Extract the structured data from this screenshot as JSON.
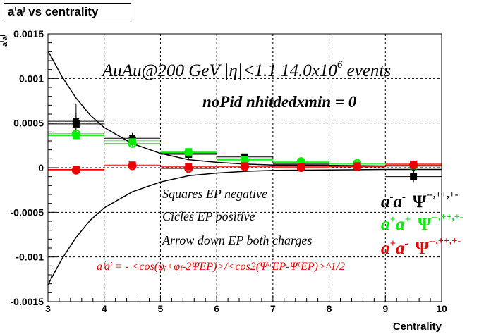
{
  "title": {
    "base": "a",
    "sup1": "i",
    "mid": "a",
    "sup2": "j",
    "rest": " vs centrality"
  },
  "ylabel": {
    "base": "a",
    "sup1": "i",
    "mid": "a",
    "sup2": "j"
  },
  "xlabel": "Centrality",
  "annotations": {
    "run": "AuAu@200 GeV |η|<1.1 14.0x10",
    "run_exp": "6",
    "run_tail": " events",
    "cuts": "noPid nhitdedxmin = 0",
    "legend_squares": "Squares EP negative",
    "legend_circles": "Cicles EP positive",
    "legend_arrows": "Arrow down EP both charges",
    "formula": "aⁱaʲ = - <cos(φᵢ+φⱼ-2ΨEP)>/<cos2(ΨᵃEP-ΨᵇEP)>^1/2"
  },
  "labels": {
    "mm": {
      "a": "a",
      "s1": "-",
      "a2": "a",
      "s2": "-",
      "psi": "Ψ",
      "psi_sup": "--,++,+-"
    },
    "pp": {
      "a": "a",
      "s1": "+",
      "a2": "a",
      "s2": "+",
      "psi": "Ψ",
      "psi_sup": "--,++,+-"
    },
    "pm": {
      "a": "a",
      "s1": "+",
      "a2": "a",
      "s2": "-",
      "psi": "Ψ",
      "psi_sup": "--,++,+-"
    }
  },
  "colors": {
    "mm": "#000000",
    "pp": "#00ee00",
    "pm": "#ee0000",
    "frame": "#000000"
  },
  "chart_data": {
    "type": "scatter",
    "xlim": [
      3,
      10
    ],
    "ylim": [
      -0.0015,
      0.0015
    ],
    "xticks": [
      3,
      4,
      5,
      6,
      7,
      8,
      9,
      10
    ],
    "yticks": [
      -0.0015,
      -0.001,
      -0.0005,
      0,
      0.0005,
      0.001,
      0.0015
    ],
    "ytick_labels": [
      "-0.0015",
      "-0.001",
      "-0.0005",
      "0",
      "0.0005",
      "0.001",
      "0.0015"
    ],
    "grid": true,
    "x": [
      3.5,
      4.5,
      5.5,
      6.5,
      7.5,
      8.5,
      9.5
    ],
    "series": [
      {
        "key": "mm",
        "marker": "square",
        "values": [
          0.00049,
          0.00031,
          0.00015,
          0.00012,
          3e-05,
          1e-05,
          -0.0001
        ],
        "errors": [
          0.00012,
          6e-05,
          5e-05,
          4e-05,
          3e-05,
          4e-05,
          6e-05
        ]
      },
      {
        "key": "mm",
        "marker": "arrow",
        "values": [
          0.00052,
          0.00033,
          0.00016,
          0.0001,
          4e-05,
          2e-05,
          -2e-05
        ],
        "errors": [
          0.0002,
          6e-05,
          5e-05,
          4e-05,
          3e-05,
          3e-05,
          4e-05
        ]
      },
      {
        "key": "pp",
        "marker": "square",
        "values": [
          0.00036,
          0.00029,
          0.00018,
          9e-05,
          6e-05,
          4e-05,
          2e-05
        ],
        "errors": [
          4e-05,
          3e-05,
          3e-05,
          3e-05,
          3e-05,
          3e-05,
          3e-05
        ]
      },
      {
        "key": "pp",
        "marker": "circle",
        "values": [
          0.00038,
          0.00027,
          0.00017,
          8e-05,
          7e-05,
          5e-05,
          3e-05
        ],
        "errors": [
          4e-05,
          3e-05,
          3e-05,
          3e-05,
          3e-05,
          3e-05,
          3e-05
        ]
      },
      {
        "key": "pm",
        "marker": "square",
        "values": [
          -2e-05,
          3e-05,
          1e-05,
          2e-05,
          1e-05,
          2e-05,
          4e-05
        ],
        "errors": [
          2e-05,
          2e-05,
          2e-05,
          2e-05,
          2e-05,
          2e-05,
          3e-05
        ]
      },
      {
        "key": "pm",
        "marker": "circle",
        "values": [
          -3e-05,
          2e-05,
          -1e-05,
          1e-05,
          0.0,
          1e-05,
          3e-05
        ],
        "errors": [
          2e-05,
          2e-05,
          2e-05,
          2e-05,
          2e-05,
          2e-05,
          3e-05
        ]
      }
    ],
    "curves": {
      "upper": [
        [
          3.0,
          0.00131
        ],
        [
          3.25,
          0.00102
        ],
        [
          3.5,
          0.00078
        ],
        [
          3.75,
          0.00059
        ],
        [
          4.0,
          0.00045
        ],
        [
          4.5,
          0.00027
        ],
        [
          5.0,
          0.00016
        ],
        [
          5.5,
          9e-05
        ],
        [
          6.0,
          6e-05
        ],
        [
          6.5,
          4e-05
        ],
        [
          7.0,
          3e-05
        ],
        [
          8.0,
          2.5e-05
        ],
        [
          9.0,
          2e-05
        ],
        [
          10.0,
          2e-05
        ]
      ],
      "lower": [
        [
          3.0,
          -0.00131
        ],
        [
          3.25,
          -0.00102
        ],
        [
          3.5,
          -0.00078
        ],
        [
          3.75,
          -0.00059
        ],
        [
          4.0,
          -0.00045
        ],
        [
          4.5,
          -0.00027
        ],
        [
          5.0,
          -0.00016
        ],
        [
          5.5,
          -9e-05
        ],
        [
          6.0,
          -6e-05
        ],
        [
          6.5,
          -4e-05
        ],
        [
          7.0,
          -3e-05
        ],
        [
          8.0,
          -2.5e-05
        ],
        [
          9.0,
          -2e-05
        ],
        [
          10.0,
          -2e-05
        ]
      ]
    }
  }
}
